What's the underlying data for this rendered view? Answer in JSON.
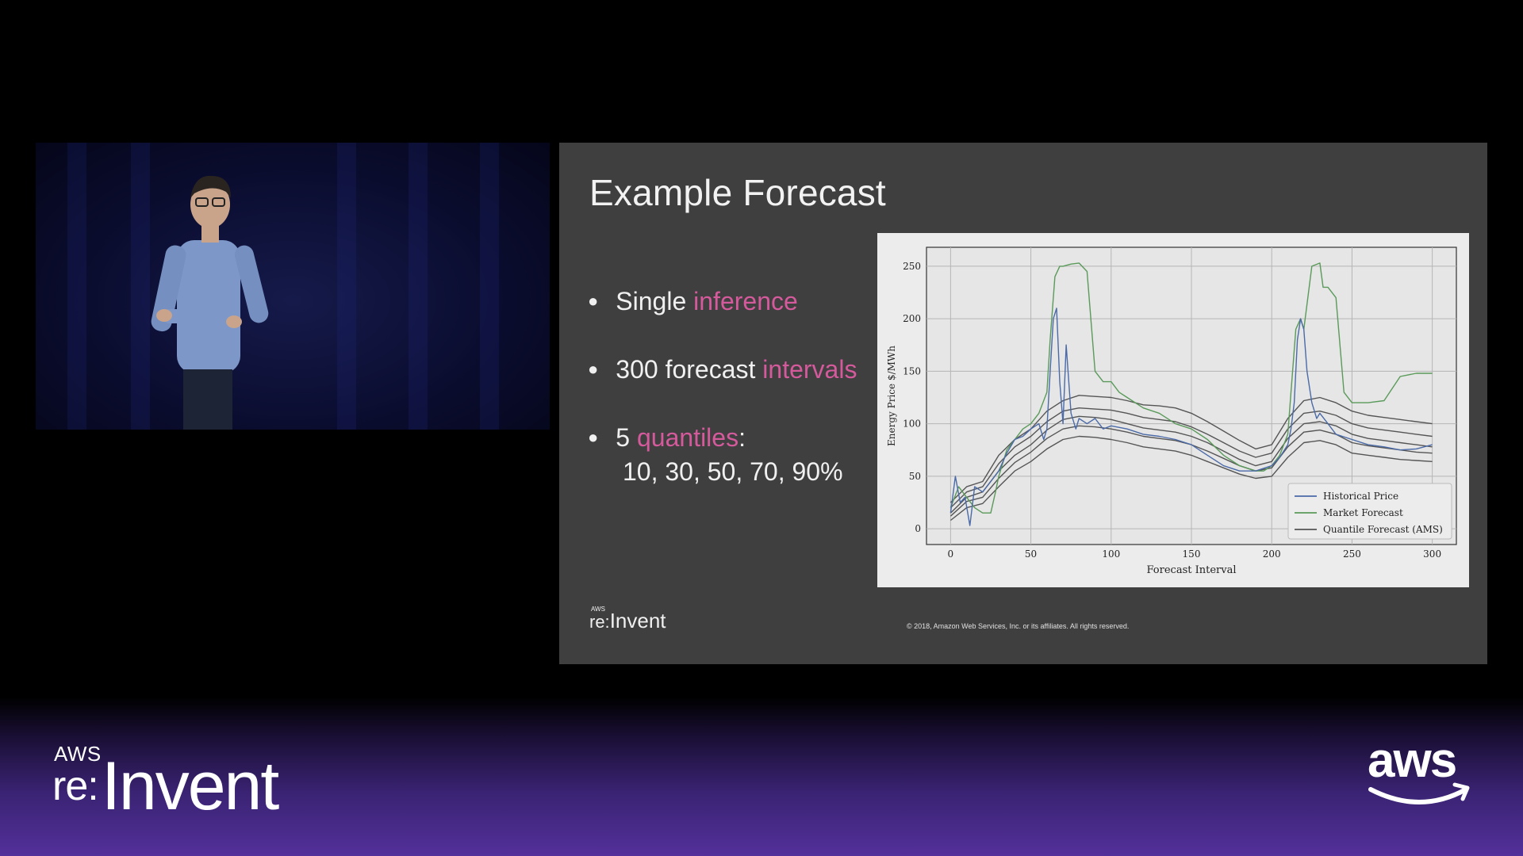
{
  "slide": {
    "title": "Example Forecast",
    "bullets": [
      {
        "prefix": "Single ",
        "highlight": "inference",
        "suffix": ""
      },
      {
        "prefix": "300 forecast ",
        "highlight": "intervals",
        "suffix": ""
      },
      {
        "prefix": "5 ",
        "highlight": "quantiles",
        "suffix": ":",
        "line2": "10, 30, 50, 70, 90%"
      }
    ],
    "footer_logo": {
      "aws": "AWS",
      "re": "re:",
      "invent": "Invent"
    },
    "copyright": "© 2018, Amazon Web Services, Inc. or its affiliates. All rights reserved."
  },
  "event_logo": {
    "aws": "AWS",
    "re": "re:",
    "invent": "Invent"
  },
  "brand_logo": {
    "text": "aws"
  },
  "colors": {
    "highlight": "#d45a9c",
    "historical": "#4a6aa8",
    "market": "#5a9a5a",
    "quantile": "#555555"
  },
  "chart_data": {
    "type": "line",
    "xlabel": "Forecast Interval",
    "ylabel": "Energy Price $/MWh",
    "xlim": [
      -15,
      315
    ],
    "ylim": [
      -15,
      268
    ],
    "xticks": [
      0,
      50,
      100,
      150,
      200,
      250,
      300
    ],
    "yticks": [
      0,
      50,
      100,
      150,
      200,
      250
    ],
    "grid": true,
    "legend_position": "lower-right",
    "legend": [
      "Historical Price",
      "Market Forecast",
      "Quantile Forecast (AMS)"
    ],
    "series": [
      {
        "name": "Historical Price",
        "x": [
          0,
          3,
          6,
          9,
          12,
          15,
          20,
          25,
          30,
          35,
          40,
          45,
          50,
          55,
          58,
          60,
          62,
          64,
          66,
          68,
          70,
          72,
          75,
          78,
          80,
          85,
          90,
          95,
          100,
          110,
          120,
          130,
          140,
          150,
          160,
          170,
          180,
          190,
          200,
          205,
          210,
          212,
          214,
          216,
          218,
          220,
          222,
          225,
          228,
          230,
          235,
          240,
          250,
          260,
          270,
          280,
          290,
          300
        ],
        "y": [
          15,
          50,
          25,
          30,
          3,
          40,
          35,
          45,
          55,
          72,
          85,
          88,
          95,
          100,
          85,
          95,
          150,
          200,
          210,
          140,
          100,
          175,
          110,
          95,
          105,
          100,
          105,
          95,
          98,
          95,
          90,
          88,
          85,
          80,
          70,
          60,
          55,
          55,
          60,
          68,
          80,
          95,
          120,
          180,
          200,
          190,
          150,
          120,
          105,
          110,
          100,
          90,
          85,
          80,
          78,
          75,
          76,
          80
        ]
      },
      {
        "name": "Market Forecast",
        "x": [
          0,
          5,
          10,
          15,
          20,
          25,
          28,
          30,
          35,
          40,
          45,
          50,
          55,
          60,
          62,
          65,
          68,
          70,
          75,
          80,
          85,
          90,
          95,
          100,
          105,
          110,
          120,
          130,
          140,
          150,
          160,
          170,
          180,
          190,
          195,
          200,
          205,
          210,
          212,
          215,
          218,
          220,
          225,
          230,
          232,
          235,
          240,
          245,
          250,
          260,
          270,
          280,
          290,
          300
        ],
        "y": [
          20,
          40,
          30,
          20,
          15,
          15,
          35,
          50,
          75,
          85,
          95,
          100,
          110,
          130,
          180,
          240,
          250,
          250,
          252,
          253,
          245,
          150,
          140,
          140,
          130,
          125,
          115,
          110,
          100,
          95,
          85,
          70,
          60,
          55,
          55,
          60,
          70,
          90,
          130,
          190,
          200,
          190,
          250,
          253,
          230,
          230,
          220,
          130,
          120,
          120,
          122,
          145,
          148,
          148
        ]
      },
      {
        "name": "Quantile 90%",
        "x": [
          0,
          10,
          20,
          30,
          40,
          50,
          60,
          70,
          80,
          90,
          100,
          110,
          120,
          130,
          140,
          150,
          160,
          170,
          180,
          190,
          200,
          210,
          220,
          230,
          240,
          250,
          260,
          270,
          280,
          290,
          300
        ],
        "y": [
          25,
          40,
          45,
          70,
          85,
          95,
          112,
          122,
          127,
          126,
          125,
          122,
          118,
          117,
          115,
          110,
          102,
          93,
          84,
          76,
          80,
          105,
          122,
          125,
          120,
          112,
          108,
          106,
          104,
          102,
          100
        ]
      },
      {
        "name": "Quantile 70%",
        "x": [
          0,
          10,
          20,
          30,
          40,
          50,
          60,
          70,
          80,
          90,
          100,
          110,
          120,
          130,
          140,
          150,
          160,
          170,
          180,
          190,
          200,
          210,
          220,
          230,
          240,
          250,
          260,
          270,
          280,
          290,
          300
        ],
        "y": [
          20,
          35,
          40,
          62,
          78,
          88,
          102,
          112,
          115,
          114,
          113,
          110,
          106,
          104,
          102,
          97,
          90,
          82,
          74,
          68,
          72,
          95,
          110,
          112,
          108,
          100,
          96,
          94,
          92,
          90,
          88
        ]
      },
      {
        "name": "Quantile 50%",
        "x": [
          0,
          10,
          20,
          30,
          40,
          50,
          60,
          70,
          80,
          90,
          100,
          110,
          120,
          130,
          140,
          150,
          160,
          170,
          180,
          190,
          200,
          210,
          220,
          230,
          240,
          250,
          260,
          270,
          280,
          290,
          300
        ],
        "y": [
          15,
          30,
          35,
          55,
          70,
          80,
          94,
          104,
          107,
          106,
          104,
          100,
          96,
          94,
          92,
          88,
          82,
          74,
          66,
          60,
          64,
          86,
          100,
          102,
          98,
          90,
          86,
          84,
          82,
          80,
          78
        ]
      },
      {
        "name": "Quantile 30%",
        "x": [
          0,
          10,
          20,
          30,
          40,
          50,
          60,
          70,
          80,
          90,
          100,
          110,
          120,
          130,
          140,
          150,
          160,
          170,
          180,
          190,
          200,
          210,
          220,
          230,
          240,
          250,
          260,
          270,
          280,
          290,
          300
        ],
        "y": [
          12,
          26,
          30,
          48,
          63,
          73,
          86,
          95,
          98,
          97,
          95,
          92,
          88,
          86,
          84,
          80,
          74,
          67,
          60,
          55,
          58,
          78,
          92,
          94,
          90,
          82,
          79,
          77,
          75,
          73,
          72
        ]
      },
      {
        "name": "Quantile 10%",
        "x": [
          0,
          10,
          20,
          30,
          40,
          50,
          60,
          70,
          80,
          90,
          100,
          110,
          120,
          130,
          140,
          150,
          160,
          170,
          180,
          190,
          200,
          210,
          220,
          230,
          240,
          250,
          260,
          270,
          280,
          290,
          300
        ],
        "y": [
          8,
          20,
          24,
          40,
          55,
          64,
          76,
          85,
          88,
          87,
          85,
          82,
          78,
          76,
          74,
          70,
          64,
          58,
          52,
          48,
          50,
          68,
          82,
          84,
          80,
          72,
          70,
          68,
          66,
          65,
          64
        ]
      }
    ]
  }
}
